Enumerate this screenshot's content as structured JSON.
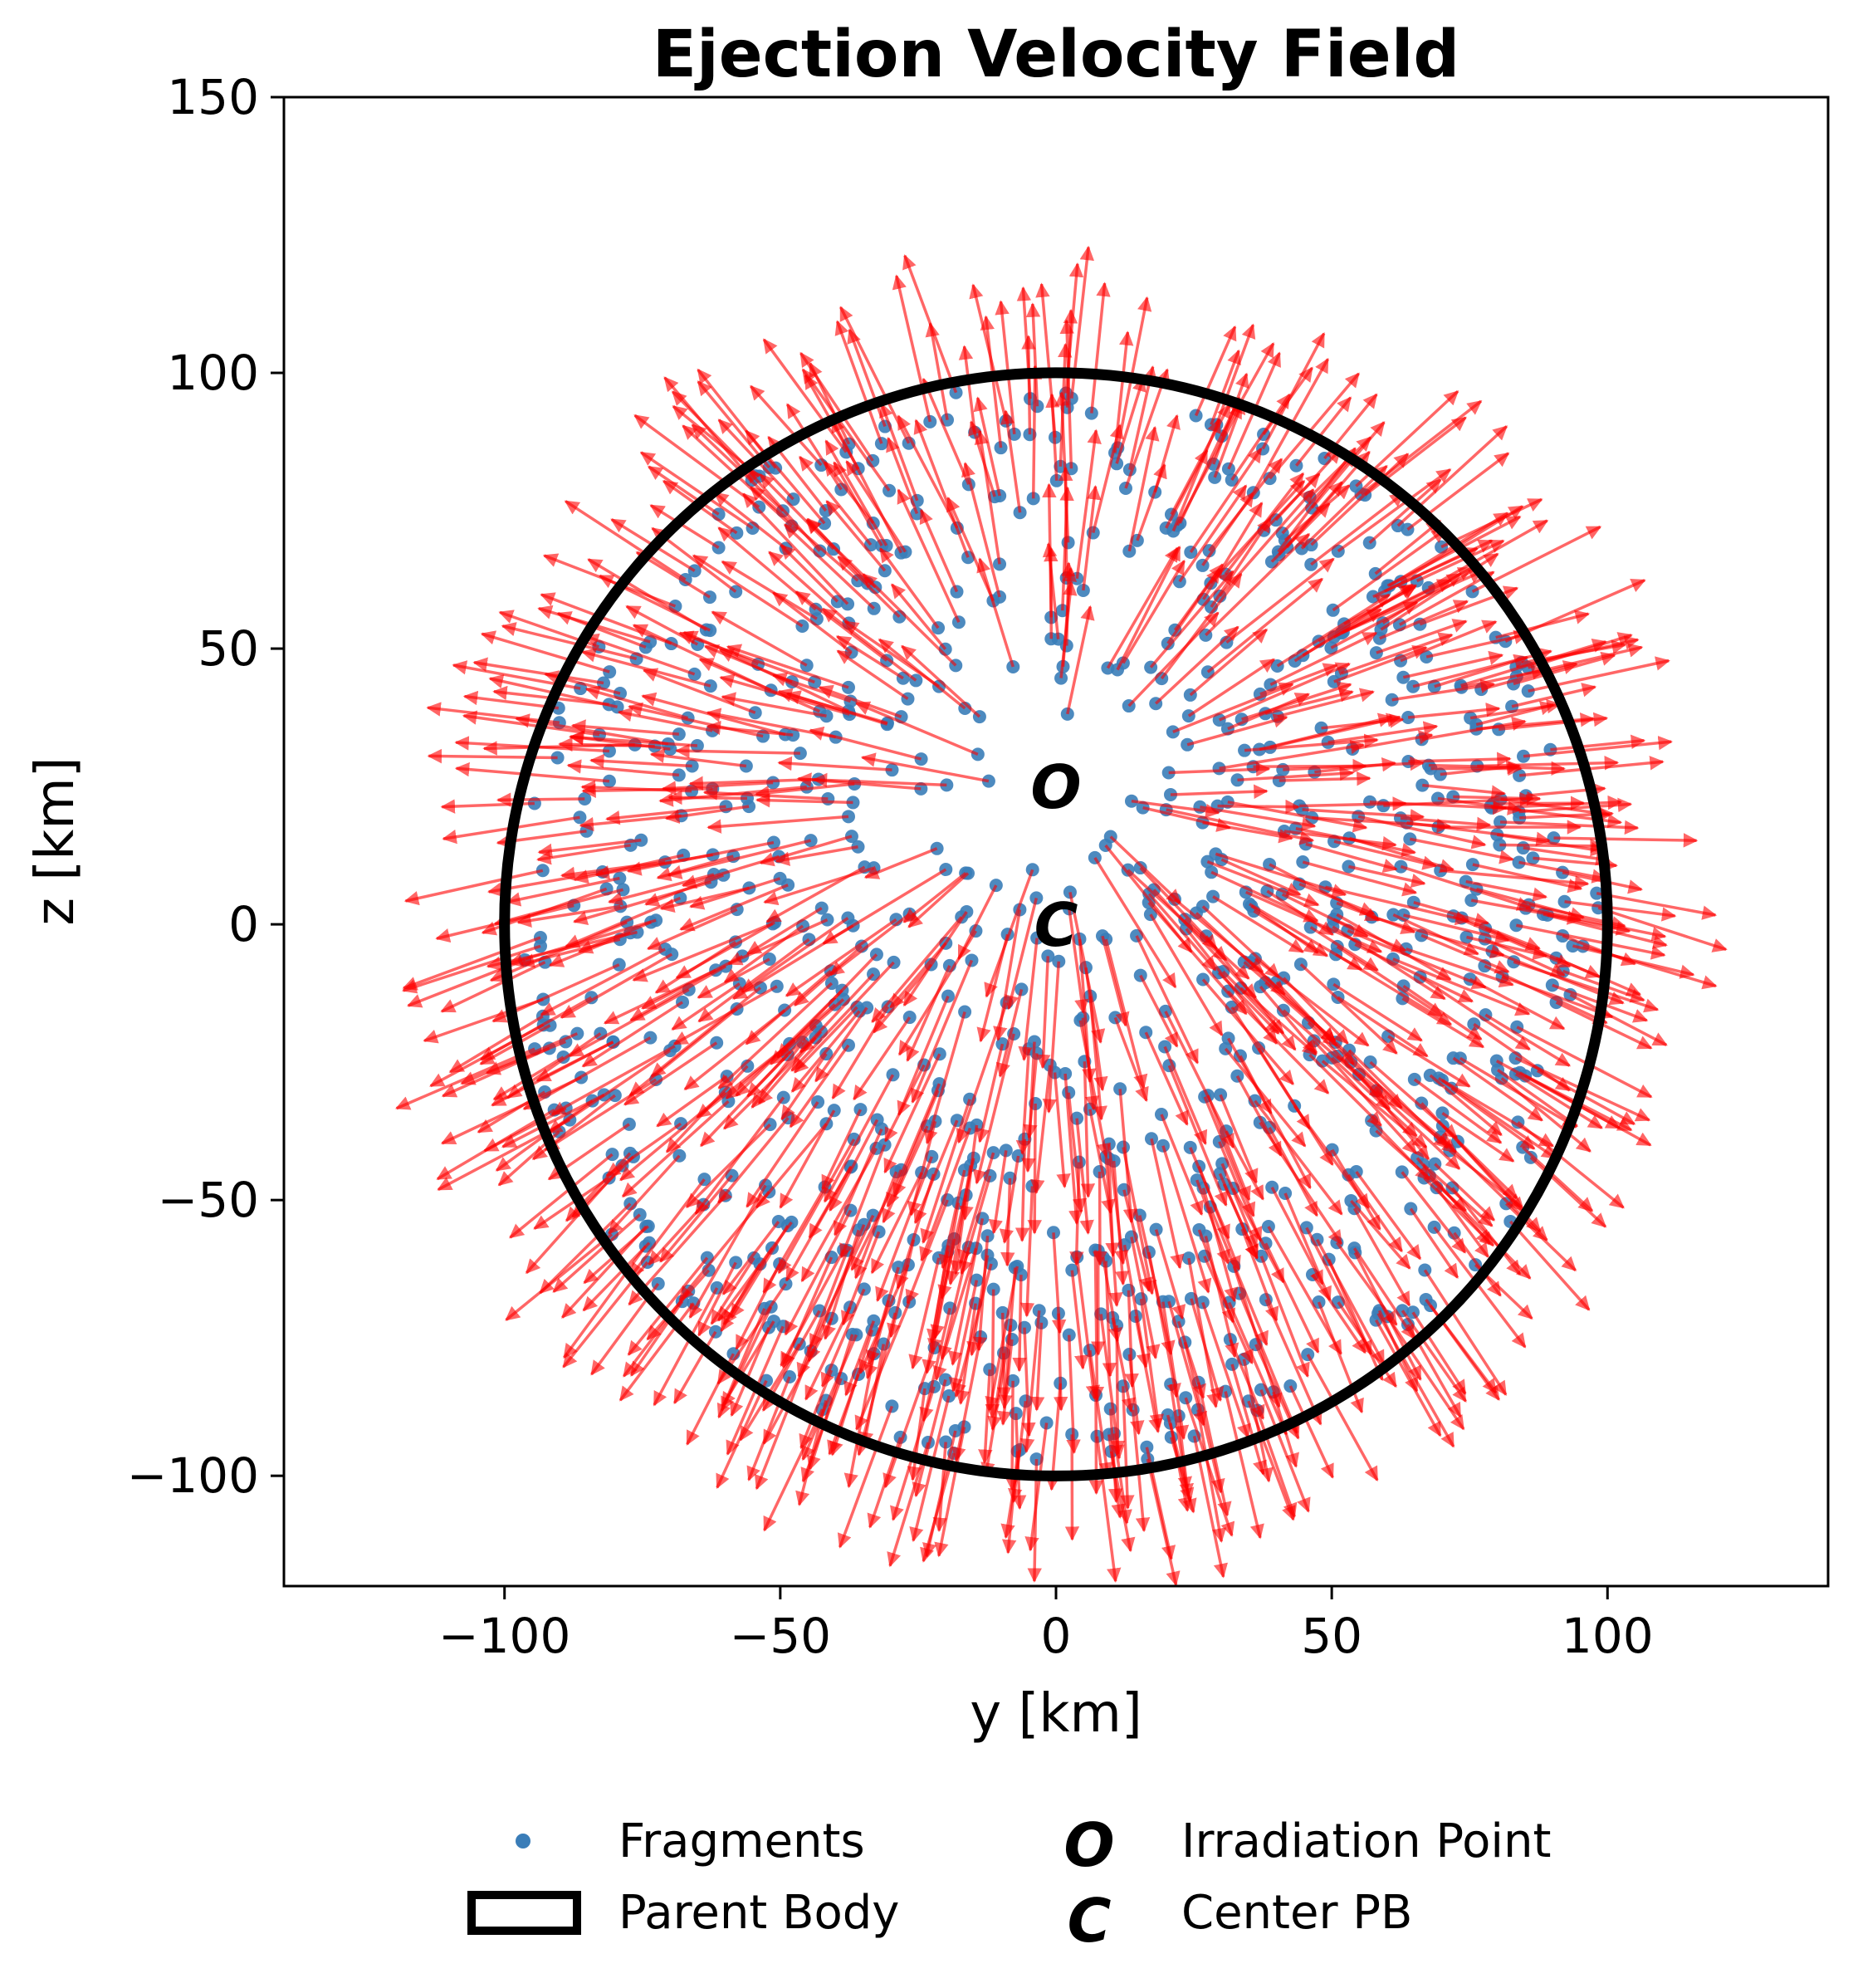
{
  "chart_data": {
    "type": "quiver",
    "title": "Ejection Velocity Field",
    "xlabel": "y [km]",
    "ylabel": "z [km]",
    "xlim": [
      -140,
      140
    ],
    "ylim": [
      -120,
      150
    ],
    "xticks": [
      -100,
      -50,
      0,
      50,
      100
    ],
    "xtick_labels": [
      "−100",
      "−50",
      "0",
      "50",
      "100"
    ],
    "yticks": [
      -100,
      -50,
      0,
      50,
      100,
      150
    ],
    "ytick_labels": [
      "−100",
      "−50",
      "0",
      "50",
      "100",
      "150"
    ],
    "parent_body": {
      "center": [
        0,
        0
      ],
      "radius": 100,
      "color": "#000000"
    },
    "irradiation_point": {
      "y": 0,
      "z": 25,
      "marker": "O"
    },
    "center_pb": {
      "y": 0,
      "z": 0,
      "marker": "C"
    },
    "fragments": {
      "count": 1000,
      "distribution": "uniform within parent body, sparse near irradiation point",
      "color": "#3a7db8"
    },
    "velocity_field": {
      "direction": "radially outward from irradiation point",
      "color": "#ff0000",
      "approx_arrow_length_km": 20
    },
    "legend": [
      {
        "label": "Fragments",
        "symbol": "dot"
      },
      {
        "label": "Parent Body",
        "symbol": "rect"
      },
      {
        "label": "Irradiation Point",
        "symbol": "O"
      },
      {
        "label": "Center PB",
        "symbol": "C"
      }
    ]
  }
}
